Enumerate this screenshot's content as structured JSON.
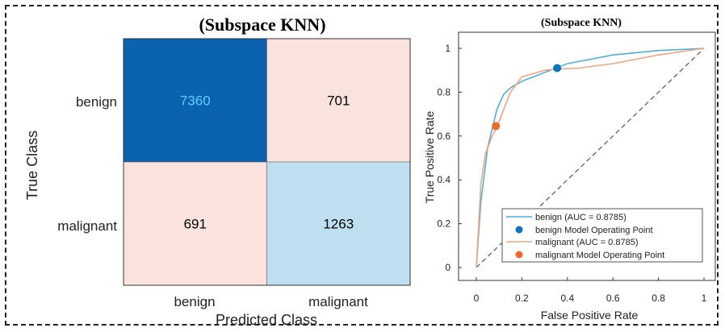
{
  "chart_data": [
    {
      "type": "heatmap",
      "title": "(Subspace KNN)",
      "xlabel": "Predicted Class",
      "ylabel": "True Class",
      "row_labels": [
        "benign",
        "malignant"
      ],
      "col_labels": [
        "benign",
        "malignant"
      ],
      "values": [
        [
          7360,
          701
        ],
        [
          691,
          1263
        ]
      ],
      "cell_colors": [
        [
          "#0b63b0",
          "#fae3dd"
        ],
        [
          "#fae3dd",
          "#bddff0"
        ]
      ],
      "value_colors": [
        [
          "#5fd0ff",
          "#000000"
        ],
        [
          "#000000",
          "#000000"
        ]
      ]
    },
    {
      "type": "line",
      "title": "(Subspace KNN)",
      "xlabel": "False Positive Rate",
      "ylabel": "True Positive Rate",
      "xlim": [
        0,
        1
      ],
      "ylim": [
        0,
        1
      ],
      "xticks": [
        "0",
        "0.2",
        "0.4",
        "0.6",
        "0.8",
        "1"
      ],
      "yticks": [
        "0",
        "0.2",
        "0.4",
        "0.6",
        "0.8",
        "1"
      ],
      "legend_position": "bottom-right",
      "series": [
        {
          "name": "benign (AUC = 0.8785)",
          "color": "#4fb0d8",
          "x": [
            0,
            0.02,
            0.05,
            0.09,
            0.12,
            0.15,
            0.2,
            0.25,
            0.3,
            0.35,
            0.4,
            0.5,
            0.6,
            0.7,
            0.8,
            0.9,
            1
          ],
          "y": [
            0,
            0.3,
            0.55,
            0.72,
            0.79,
            0.82,
            0.85,
            0.87,
            0.89,
            0.91,
            0.93,
            0.95,
            0.97,
            0.98,
            0.99,
            0.995,
            1
          ]
        },
        {
          "name": "malignant (AUC = 0.8785)",
          "color": "#f2a585",
          "x": [
            0,
            0.02,
            0.04,
            0.07,
            0.09,
            0.12,
            0.15,
            0.2,
            0.3,
            0.35,
            0.45,
            0.6,
            0.7,
            0.8,
            0.9,
            1
          ],
          "y": [
            0,
            0.38,
            0.52,
            0.6,
            0.64,
            0.72,
            0.8,
            0.87,
            0.9,
            0.905,
            0.91,
            0.93,
            0.95,
            0.97,
            0.985,
            1
          ]
        }
      ],
      "operating_points": [
        {
          "name": "benign Model Operating Point",
          "color": "#0b73c2",
          "x": 0.355,
          "y": 0.91
        },
        {
          "name": "malignant Model Operating Point",
          "color": "#ee6a2a",
          "x": 0.086,
          "y": 0.645
        }
      ]
    }
  ]
}
